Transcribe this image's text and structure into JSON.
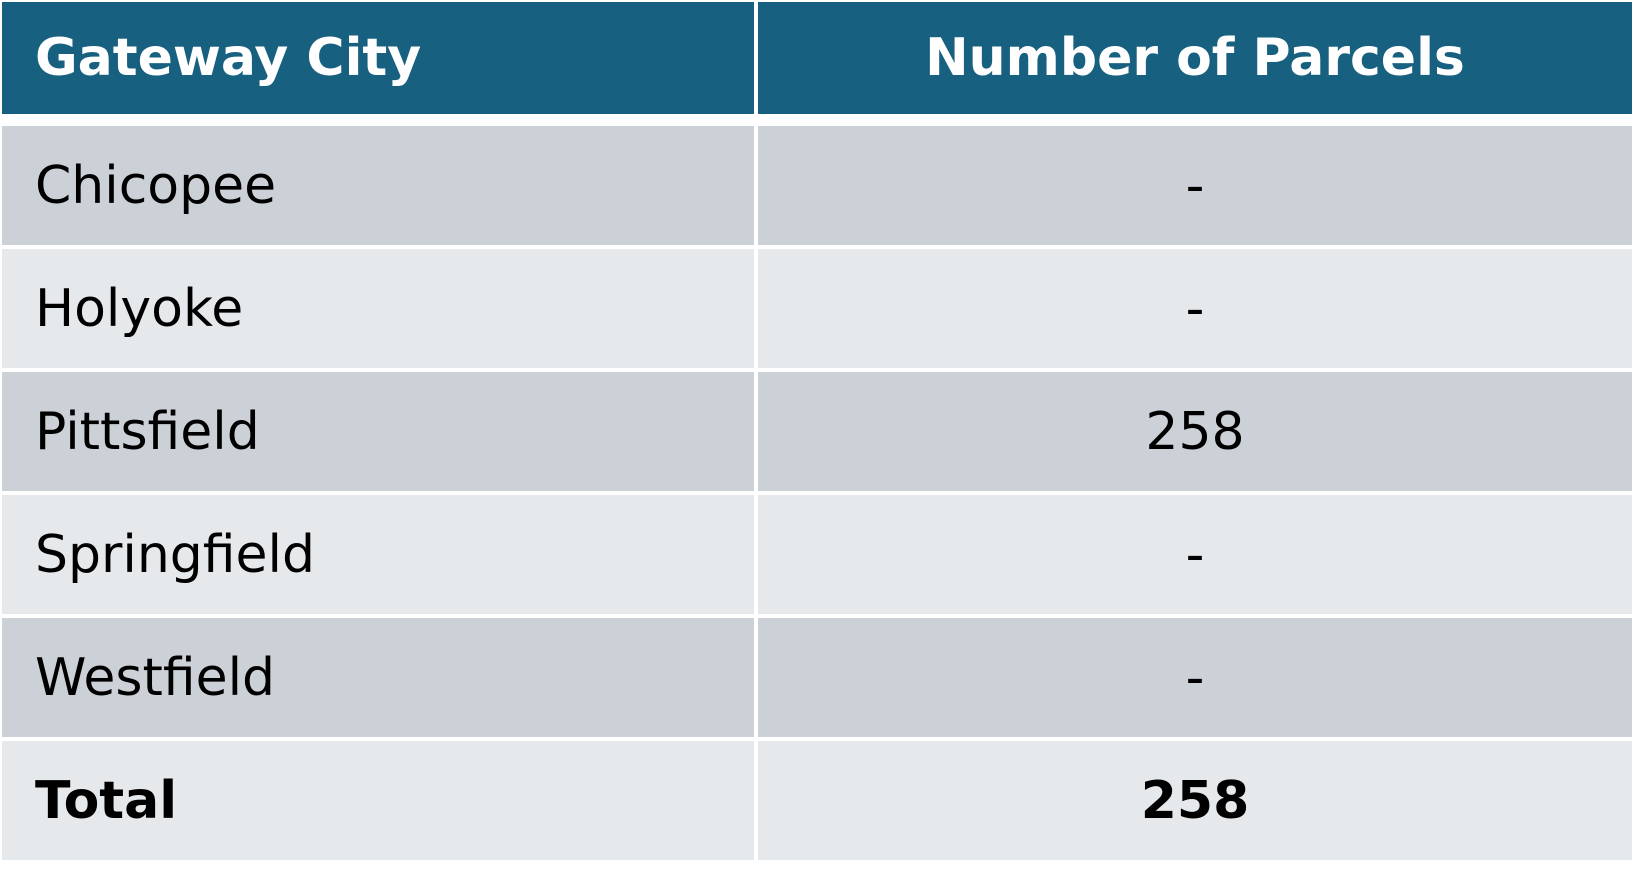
{
  "table": {
    "header": [
      "Gateway City",
      "Number of Parcels"
    ],
    "rows": [
      [
        "Chicopee",
        "-"
      ],
      [
        "Holyoke",
        "-"
      ],
      [
        "Pittsfield",
        258
      ],
      [
        "Springfield",
        "-"
      ],
      [
        "Westfield",
        "-"
      ]
    ],
    "total": [
      "Total",
      258
    ]
  }
}
